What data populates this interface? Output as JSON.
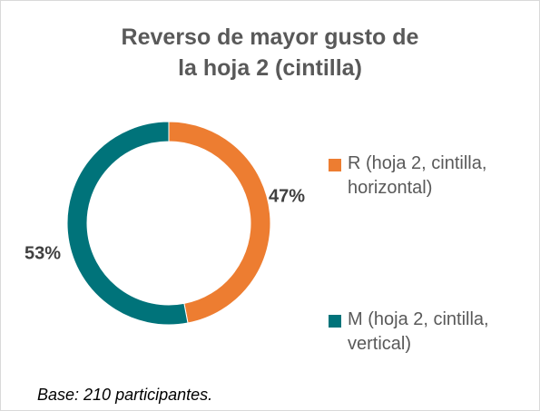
{
  "chart_data": {
    "type": "donut",
    "title": [
      "Reverso de mayor gusto de",
      "la hoja 2 (cintilla)"
    ],
    "categories": [
      "R (hoja 2, cintilla, horizontal)",
      "M (hoja 2, cintilla, vertical)"
    ],
    "values": [
      47,
      53
    ],
    "value_labels": [
      "47%",
      "53%"
    ],
    "colors": [
      "#ed7d31",
      "#00737a"
    ],
    "legend": "right",
    "note": "Base: 210 participantes."
  }
}
